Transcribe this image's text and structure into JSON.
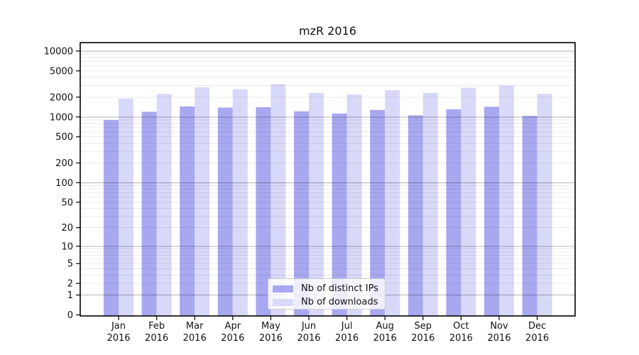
{
  "title": "mzR 2016",
  "legend": {
    "items": [
      {
        "label": "Nb of distinct IPs",
        "color": "#a8a8f0"
      },
      {
        "label": "Nb of downloads",
        "color": "#d8d8f8"
      }
    ]
  },
  "chart_data": {
    "type": "bar",
    "title": "mzR 2016",
    "categories": [
      "Jan 2016",
      "Feb 2016",
      "Mar 2016",
      "Apr 2016",
      "May 2016",
      "Jun 2016",
      "Jul 2016",
      "Aug 2016",
      "Sep 2016",
      "Oct 2016",
      "Nov 2016",
      "Dec 2016"
    ],
    "x_tick_months": [
      "Jan",
      "Feb",
      "Mar",
      "Apr",
      "May",
      "Jun",
      "Jul",
      "Aug",
      "Sep",
      "Oct",
      "Nov",
      "Dec"
    ],
    "x_tick_year": "2016",
    "series": [
      {
        "name": "Nb of distinct IPs",
        "color": "#a8a8f0",
        "values": [
          900,
          1200,
          1450,
          1390,
          1410,
          1220,
          1130,
          1280,
          1060,
          1310,
          1430,
          1040
        ]
      },
      {
        "name": "Nb of downloads",
        "color": "#d8d8f8",
        "values": [
          1900,
          2240,
          2830,
          2640,
          3150,
          2320,
          2200,
          2560,
          2320,
          2800,
          2990,
          2240
        ]
      }
    ],
    "ylabel": "",
    "xlabel": "",
    "y_scale": "log10(1+x)",
    "ylim": [
      0,
      10000
    ],
    "y_ticks": [
      0,
      1,
      2,
      5,
      10,
      20,
      50,
      100,
      200,
      500,
      1000,
      2000,
      5000,
      10000
    ],
    "grid": "horizontal major (decades, gray) + minor (2-9 per decade, faint), drawn over bars",
    "legend_position": "lower center inside plot",
    "colors": {
      "spine": "#000000",
      "tick_text": "#111111",
      "major_grid": "rgba(0,0,0,0.29)",
      "minor_grid": "rgba(0,0,0,0.08)"
    }
  }
}
